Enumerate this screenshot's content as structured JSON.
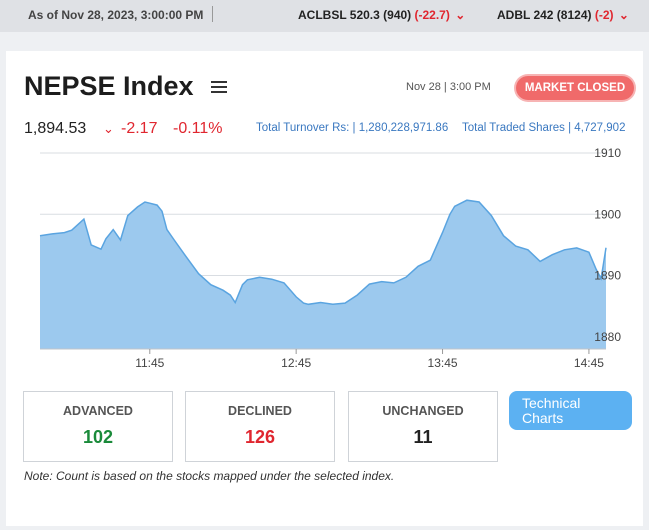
{
  "ticker": {
    "as_of": "As of Nov 28, 2023, 3:00:00 PM",
    "items": [
      {
        "symbol_price": "ACLBSL 520.3 (940)",
        "change": "(-22.7)"
      },
      {
        "symbol_price": "ADBL 242 (8124)",
        "change": "(-2)"
      }
    ]
  },
  "header": {
    "title": "NEPSE Index",
    "datestamp": "Nov 28 | 3:00 PM",
    "market_status": "MARKET CLOSED"
  },
  "summary": {
    "index_value": "1,894.53",
    "change": "-2.17",
    "change_pct": "-0.11%",
    "turnover": "Total Turnover Rs: | 1,280,228,971.86",
    "traded_shares": "Total Traded Shares | 4,727,902"
  },
  "colors": {
    "area_fill": "#9cc9ee",
    "line": "#5aa4e0",
    "down": "#e0262f",
    "up": "#1a8a3a"
  },
  "chart_data": {
    "type": "area",
    "x_ticks": [
      "11:45",
      "12:45",
      "13:45",
      "14:45"
    ],
    "ylim": [
      1878,
      1910
    ],
    "y_ticks": [
      1910,
      1900,
      1890,
      1880
    ],
    "grid": "horizontal",
    "series": [
      {
        "x": [
          "11:00",
          "11:05",
          "11:10",
          "11:13",
          "11:18",
          "11:21",
          "11:25",
          "11:27",
          "11:30",
          "11:33",
          "11:36",
          "11:40",
          "11:43",
          "11:45",
          "11:48",
          "11:50",
          "11:52",
          "11:55",
          "12:00",
          "12:05",
          "12:10",
          "12:15",
          "12:18",
          "12:20",
          "12:23",
          "12:25",
          "12:30",
          "12:35",
          "12:40",
          "12:45",
          "12:48",
          "12:50",
          "12:55",
          "13:00",
          "13:05",
          "13:10",
          "13:15",
          "13:20",
          "13:25",
          "13:30",
          "13:35",
          "13:40",
          "13:45",
          "13:48",
          "13:50",
          "13:55",
          "14:00",
          "14:05",
          "14:10",
          "14:15",
          "14:20",
          "14:25",
          "14:30",
          "14:35",
          "14:40",
          "14:45",
          "14:48",
          "14:50",
          "14:52"
        ],
        "values": [
          1896.5,
          1896.8,
          1897.0,
          1897.4,
          1899.2,
          1895.0,
          1894.3,
          1896.0,
          1897.5,
          1895.8,
          1899.8,
          1901.2,
          1902.0,
          1901.8,
          1901.5,
          1900.5,
          1897.5,
          1895.8,
          1893.0,
          1890.3,
          1888.5,
          1887.6,
          1886.8,
          1885.6,
          1888.5,
          1889.3,
          1889.7,
          1889.4,
          1888.8,
          1886.5,
          1885.5,
          1885.3,
          1885.6,
          1885.3,
          1885.5,
          1886.8,
          1888.6,
          1889.0,
          1888.8,
          1889.7,
          1891.5,
          1892.5,
          1897.0,
          1900.0,
          1901.3,
          1902.3,
          1902.0,
          1899.8,
          1896.5,
          1894.8,
          1894.2,
          1892.3,
          1893.4,
          1894.2,
          1894.5,
          1893.8,
          1891.0,
          1889.5,
          1894.53
        ]
      }
    ]
  },
  "stats": {
    "advanced_label": "ADVANCED",
    "advanced_value": "102",
    "declined_label": "DECLINED",
    "declined_value": "126",
    "unchanged_label": "UNCHANGED",
    "unchanged_value": "11"
  },
  "tech_button": {
    "line1": "Technical",
    "line2": "Charts"
  },
  "note": "Note: Count is based on the stocks mapped under the selected index."
}
